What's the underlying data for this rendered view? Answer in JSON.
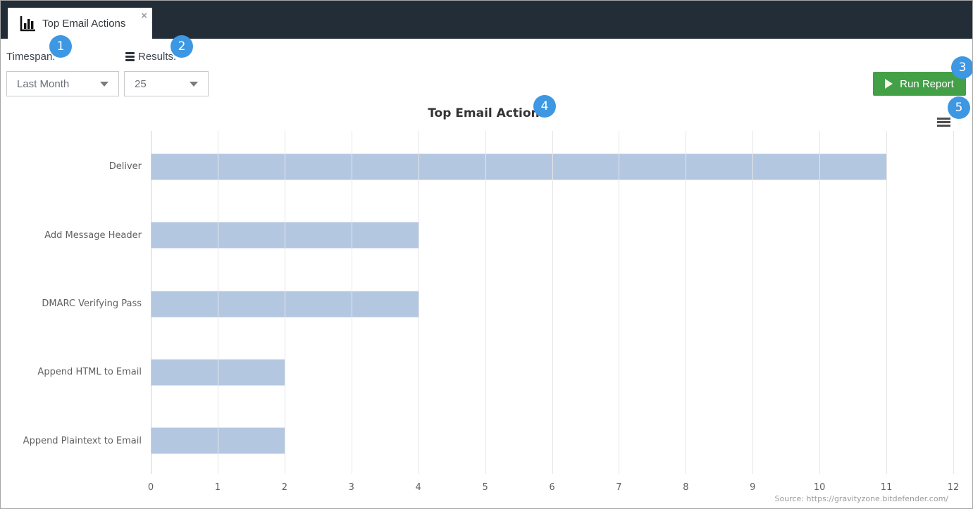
{
  "tab": {
    "title": "Top Email Actions",
    "close_glyph": "×"
  },
  "controls": {
    "timespan_label": "Timespan:",
    "timespan_value": "Last Month",
    "results_label": "Results:",
    "results_value": "25",
    "run_report_label": "Run Report"
  },
  "badges": [
    "1",
    "2",
    "3",
    "4",
    "5"
  ],
  "icons": [
    "bar-chart-icon",
    "close-icon",
    "list-icon",
    "chevron-down-icon",
    "play-icon",
    "hamburger-menu-icon"
  ],
  "colors": {
    "topbar": "#232d38",
    "badge": "#3e97e2",
    "run_button": "#43a047",
    "bar_fill": "#b4c7e1",
    "gridline": "#e6e6e6"
  },
  "chart_data": {
    "type": "bar",
    "orientation": "horizontal",
    "title": "Top Email Actions",
    "categories": [
      "Deliver",
      "Add Message Header",
      "DMARC Verifying Pass",
      "Append HTML to Email",
      "Append Plaintext to Email"
    ],
    "values": [
      11,
      4,
      4,
      2,
      2
    ],
    "xlabel": "",
    "ylabel": "",
    "xlim": [
      0,
      12
    ],
    "x_ticks": [
      0,
      1,
      2,
      3,
      4,
      5,
      6,
      7,
      8,
      9,
      10,
      11,
      12
    ],
    "grid": true,
    "legend": false,
    "bar_color": "#b4c7e1",
    "source": "Source: https://gravityzone.bitdefender.com/"
  }
}
